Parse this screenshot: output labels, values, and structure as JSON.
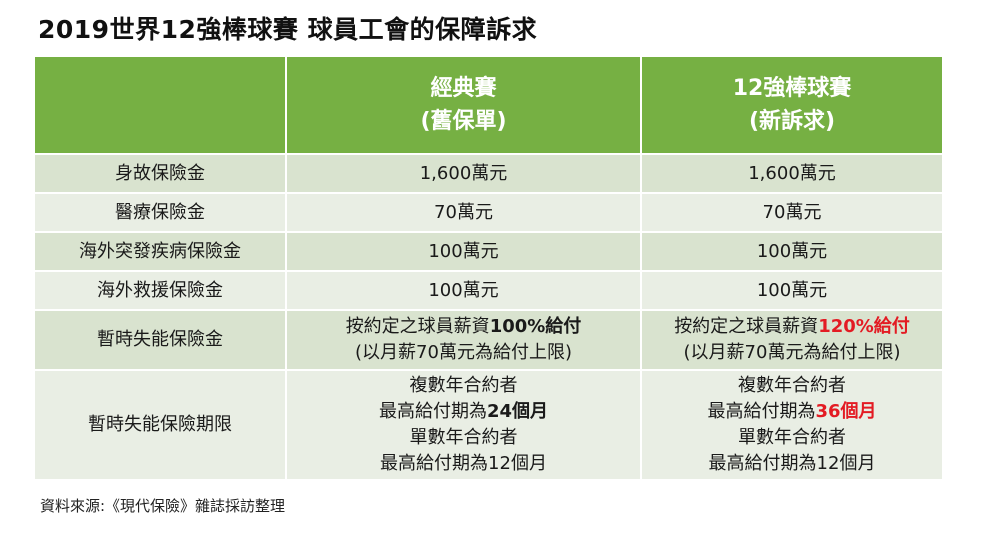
{
  "title": "2019世界12強棒球賽 球員工會的保障訴求",
  "header": {
    "col1": "",
    "col2_line1": "經典賽",
    "col2_line2": "(舊保單)",
    "col3_line1": "12強棒球賽",
    "col3_line2": "(新訴求)"
  },
  "rows": [
    {
      "label": "身故保險金",
      "old": "1,600萬元",
      "new": "1,600萬元"
    },
    {
      "label": "醫療保險金",
      "old": "70萬元",
      "new": "70萬元"
    },
    {
      "label": "海外突發疾病保險金",
      "old": "100萬元",
      "new": "100萬元"
    },
    {
      "label": "海外救援保險金",
      "old": "100萬元",
      "new": "100萬元"
    },
    {
      "label": "暫時失能保險金",
      "old": {
        "prefix": "按約定之球員薪資",
        "highlight": "100%給付",
        "line2": "(以月薪70萬元為給付上限)"
      },
      "new": {
        "prefix": "按約定之球員薪資",
        "highlight": "120%給付",
        "line2": "(以月薪70萬元為給付上限)"
      }
    },
    {
      "label": "暫時失能保險期限",
      "old": {
        "line1": "複數年合約者",
        "line2_prefix": "最高給付期為",
        "line2_highlight": "24個月",
        "line3": "單數年合約者",
        "line4": "最高給付期為12個月"
      },
      "new": {
        "line1": "複數年合約者",
        "line2_prefix": "最高給付期為",
        "line2_highlight": "36個月",
        "line3": "單數年合約者",
        "line4": "最高給付期為12個月"
      }
    }
  ],
  "source": "資料來源:《現代保險》雜誌採訪整理",
  "colors": {
    "header_bg": "#76b043",
    "row_dark": "#d9e3cf",
    "row_light": "#e9eee4",
    "highlight_red": "#e31b23"
  }
}
